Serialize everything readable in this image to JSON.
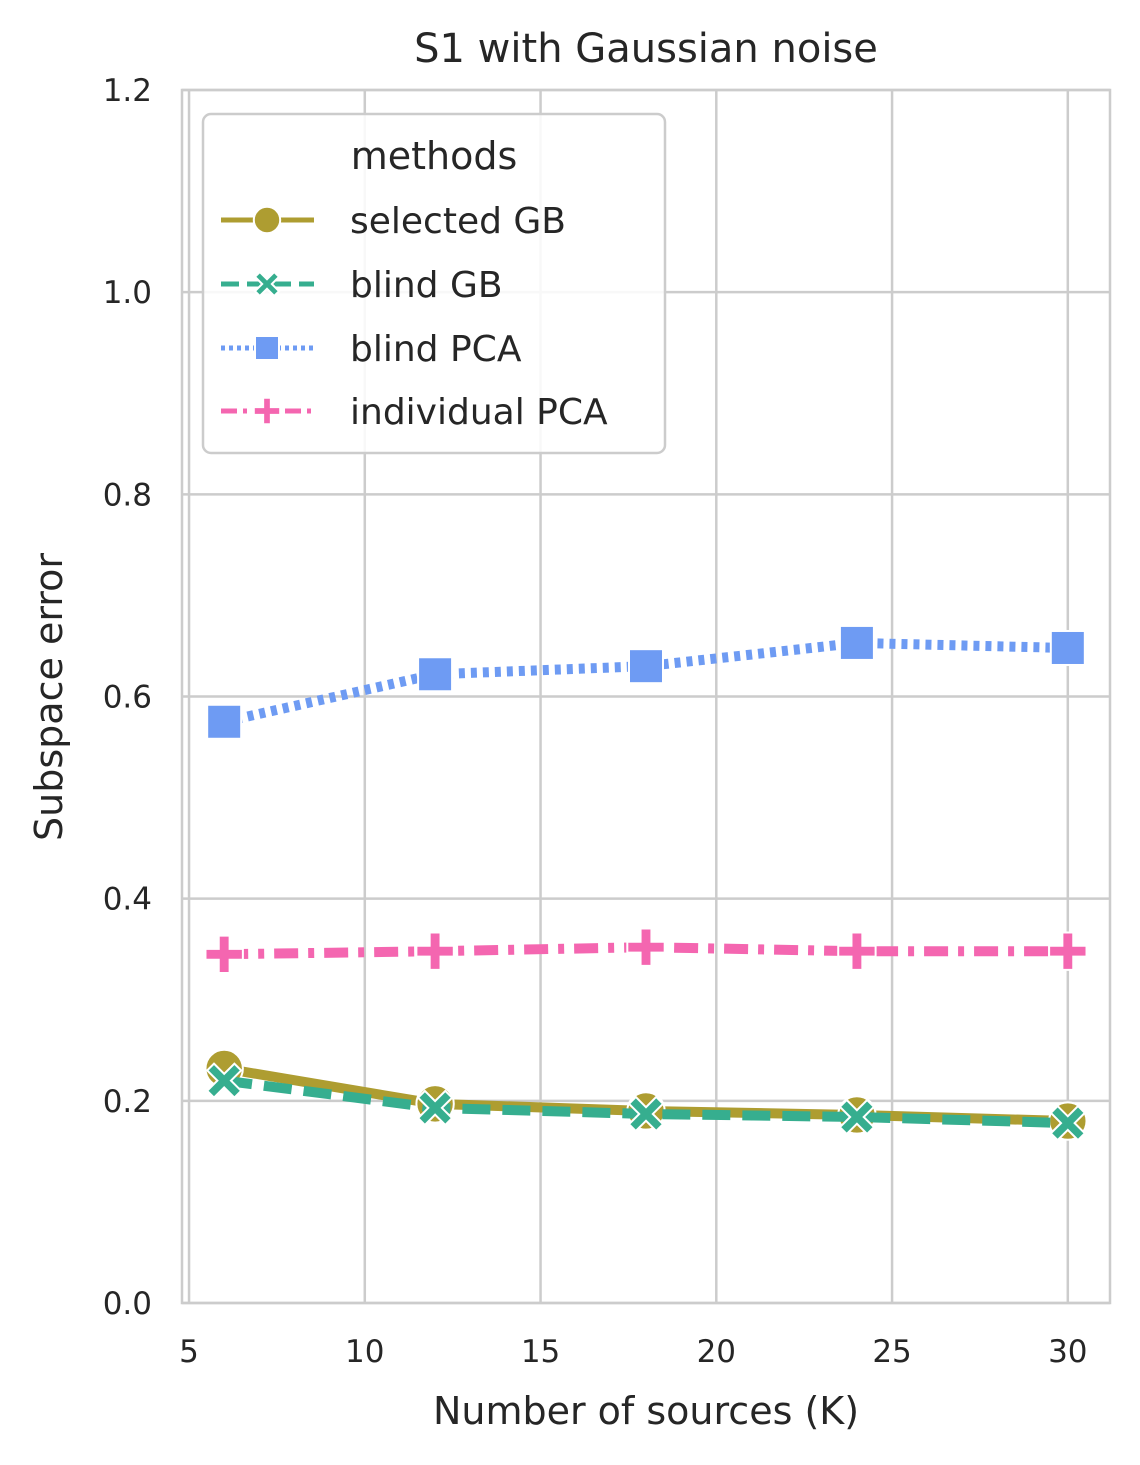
{
  "chart_data": {
    "type": "line",
    "title": "S1 with Gaussian noise",
    "xlabel": "Number of sources (K)",
    "ylabel": "Subspace error",
    "xlim": [
      4.8,
      31.2
    ],
    "ylim": [
      0.0,
      1.2
    ],
    "xticks": [
      5,
      10,
      15,
      20,
      25,
      30
    ],
    "yticks": [
      0.0,
      0.2,
      0.4,
      0.6,
      0.8,
      1.0,
      1.2
    ],
    "xtick_labels": [
      "5",
      "10",
      "15",
      "20",
      "25",
      "30"
    ],
    "ytick_labels": [
      "0.0",
      "0.2",
      "0.4",
      "0.6",
      "0.8",
      "1.0",
      "1.2"
    ],
    "grid": true,
    "legend": {
      "title": "methods",
      "position": "top-left"
    },
    "x": [
      6,
      12,
      18,
      24,
      30
    ],
    "series": [
      {
        "name": "selected GB",
        "values": [
          0.232,
          0.197,
          0.19,
          0.186,
          0.18
        ],
        "color": "#ae9d31",
        "line_style": "solid",
        "marker": "circle"
      },
      {
        "name": "blind GB",
        "values": [
          0.22,
          0.193,
          0.187,
          0.184,
          0.178
        ],
        "color": "#36ae8f",
        "line_style": "dashed",
        "marker": "x"
      },
      {
        "name": "blind PCA",
        "values": [
          0.575,
          0.622,
          0.63,
          0.653,
          0.648
        ],
        "color": "#6e9bf3",
        "line_style": "dotted",
        "marker": "square"
      },
      {
        "name": "individual PCA",
        "values": [
          0.345,
          0.348,
          0.352,
          0.348,
          0.348
        ],
        "color": "#f466b0",
        "line_style": "dashdot",
        "marker": "plus"
      }
    ]
  }
}
